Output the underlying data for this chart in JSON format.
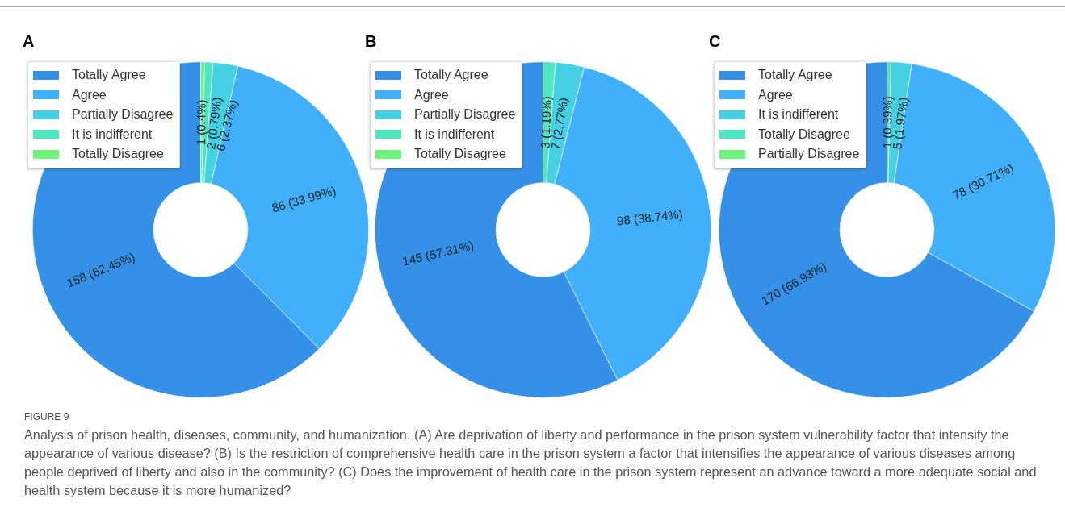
{
  "chart_data": [
    {
      "type": "donut",
      "title": "A",
      "categories": [
        "Totally Agree",
        "Agree",
        "Partially Disagree",
        "It is indifferent",
        "Totally Disagree"
      ],
      "values": [
        158,
        86,
        6,
        2,
        1
      ],
      "value_labels": [
        "158 (62.45%)",
        "86 (33.99%)",
        "6 (2.37%)",
        "2 (0.79%)",
        "1 (0.4%)"
      ],
      "colors": [
        "#3590e8",
        "#40b0fb",
        "#45d0e3",
        "#4de8c0",
        "#6ef47c"
      ],
      "legend": "top left",
      "annotations": [
        "FIGURE 9",
        "Analysis of prison health, diseases, community, and humanization. (A) Are deprivation of liberty and performance in the prison system vulnerability factor that intensify the appearance of various disease? (B) Is the restriction of comprehensive health care in the prison system a factor that intensifies the appearance of various diseases among people deprived of liberty and also in the community? (C) Does the improvement of health care in the prison system represent an advance toward a more adequate social and health system because it is more humanized?"
      ]
    },
    {
      "type": "donut",
      "title": "B",
      "categories": [
        "Totally Agree",
        "Agree",
        "Partially Disagree",
        "It is indifferent",
        "Totally Disagree"
      ],
      "values": [
        145,
        98,
        7,
        3,
        0
      ],
      "value_labels": [
        "145 (57.31%)",
        "98 (38.74%)",
        "7 (2.77%)",
        "3 (1.19%)",
        null
      ],
      "colors": [
        "#3590e8",
        "#40b0fb",
        "#45d0e3",
        "#4de8c0",
        "#6ef47c"
      ],
      "legend": "top left"
    },
    {
      "type": "donut",
      "title": "C",
      "categories": [
        "Totally Agree",
        "Agree",
        "It is indifferent",
        "Totally Disagree",
        "Partially Disagree"
      ],
      "values": [
        170,
        78,
        5,
        1,
        0
      ],
      "value_labels": [
        "170 (66.93%)",
        "78 (30.71%)",
        "5 (1.97%)",
        "1 (0.39%)",
        null
      ],
      "colors": [
        "#3590e8",
        "#40b0fb",
        "#45d0e3",
        "#4de8c0",
        "#6ef47c"
      ],
      "legend": "top left"
    }
  ]
}
